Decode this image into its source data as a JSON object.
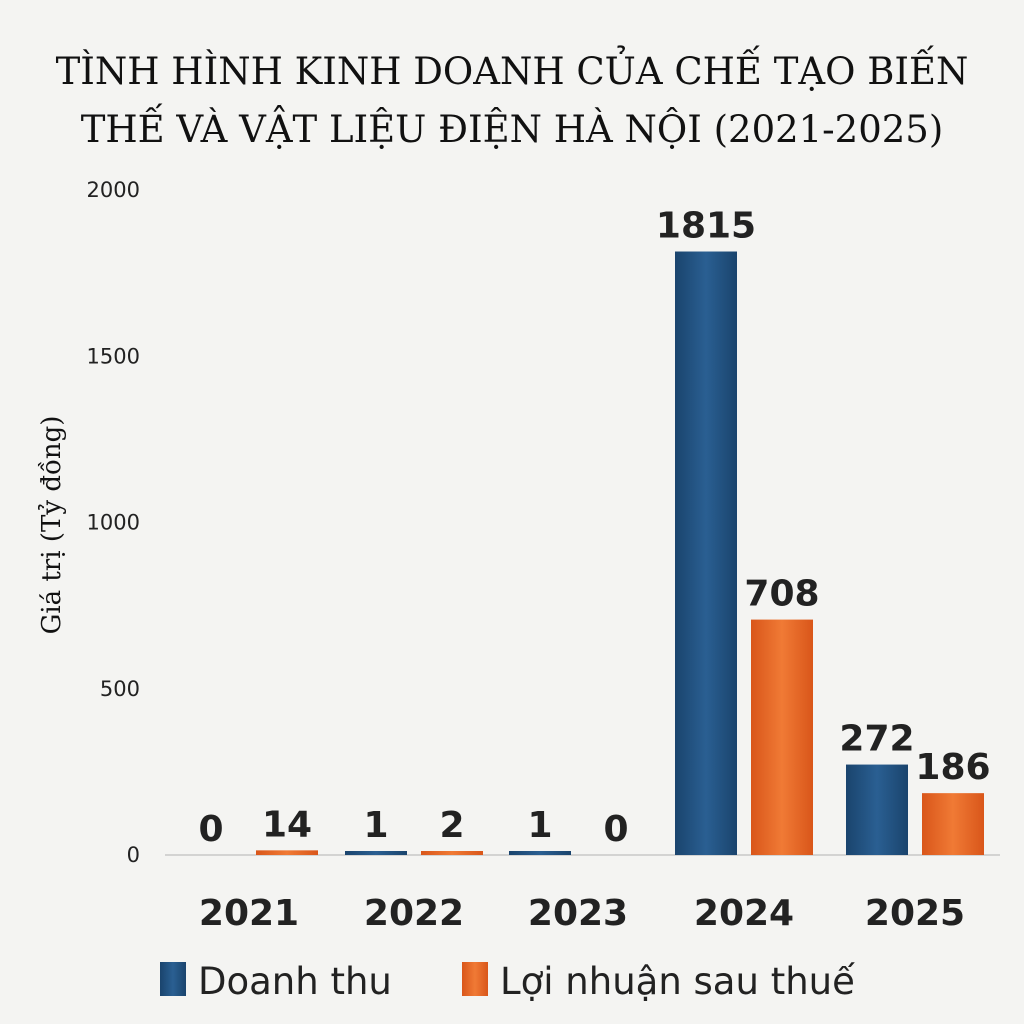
{
  "chart_data": {
    "type": "bar",
    "title_lines": [
      "TÌNH HÌNH KINH DOANH CỦA CHẾ TẠO BIẾN",
      "THẾ VÀ VẬT LIỆU ĐIỆN HÀ NỘI (2021-2025)"
    ],
    "ylabel": "Giá trị (Tỷ đồng)",
    "xlabel": "",
    "categories": [
      "2021",
      "2022",
      "2023",
      "2024",
      "2025"
    ],
    "series": [
      {
        "name": "Doanh thu",
        "color": "#1e4d7b",
        "values": [
          0,
          1,
          1,
          1815,
          272
        ],
        "value_labels": [
          "0",
          "1",
          "1",
          "1815",
          "272"
        ]
      },
      {
        "name": "Lợi nhuận sau thuế",
        "color": "#e8641e",
        "values": [
          14,
          2,
          0,
          708,
          186
        ],
        "value_labels": [
          "14",
          "2",
          "0",
          "708",
          "186"
        ]
      }
    ],
    "yticks": [
      0,
      500,
      1000,
      1500,
      2000
    ],
    "ylim": [
      0,
      2000
    ],
    "grid": false,
    "legend_position": "bottom"
  }
}
